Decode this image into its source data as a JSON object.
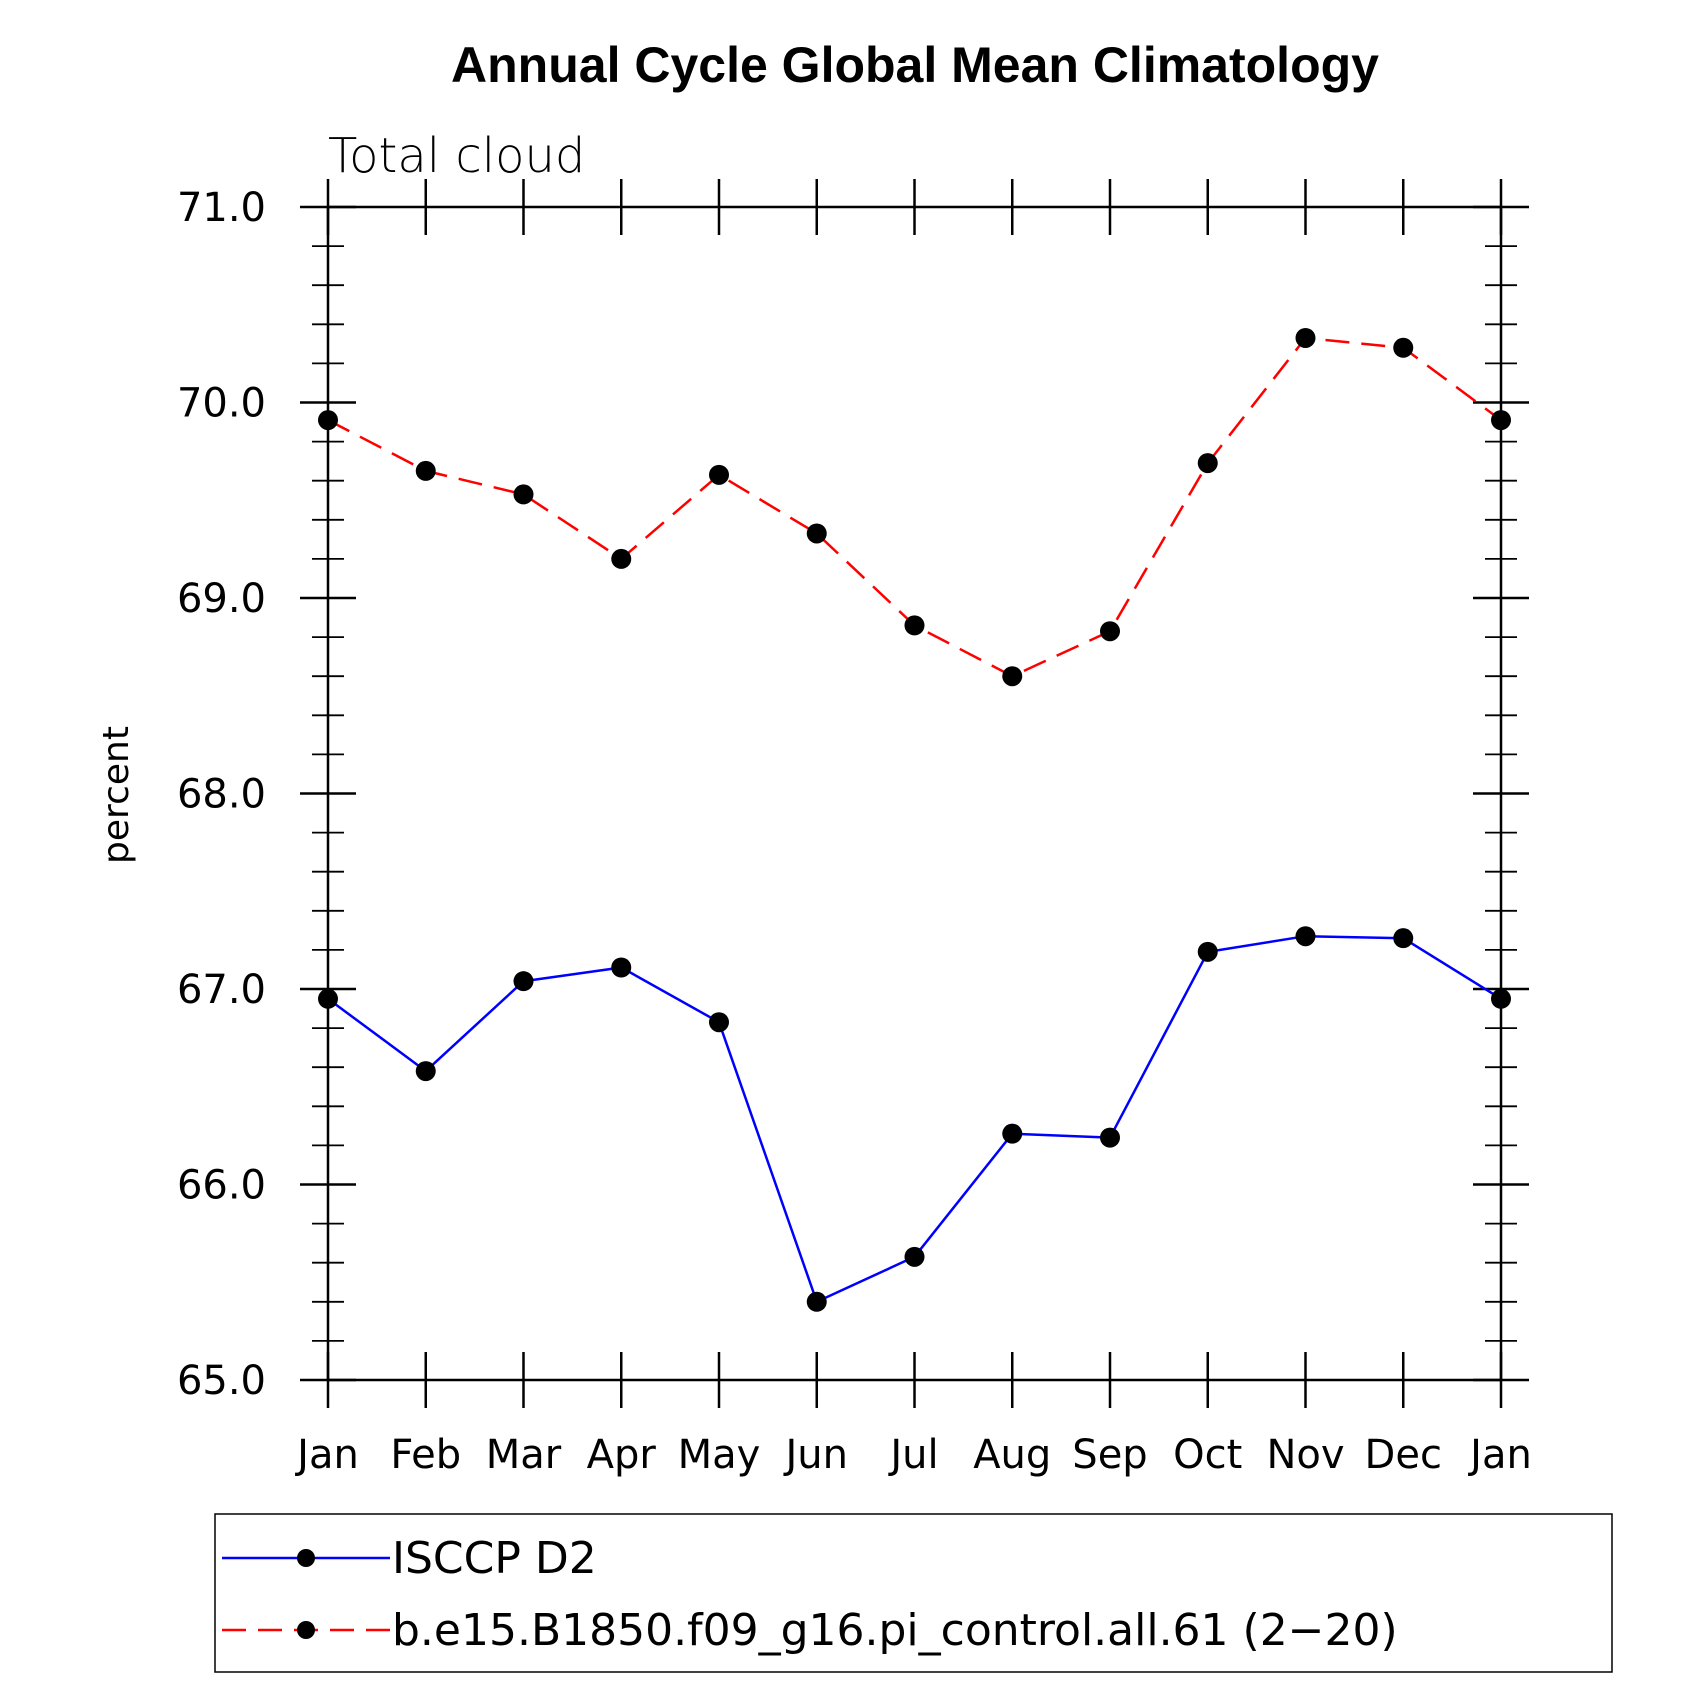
{
  "chart_data": {
    "type": "line",
    "title": "Annual Cycle Global Mean Climatology",
    "subtitle": "Total cloud",
    "xlabel": "",
    "ylabel": "percent",
    "ylim": [
      65.0,
      71.0
    ],
    "yticks": [
      "65.0",
      "66.0",
      "67.0",
      "68.0",
      "69.0",
      "70.0",
      "71.0"
    ],
    "categories": [
      "Jan",
      "Feb",
      "Mar",
      "Apr",
      "May",
      "Jun",
      "Jul",
      "Aug",
      "Sep",
      "Oct",
      "Nov",
      "Dec",
      "Jan"
    ],
    "grid": false,
    "legend_position": "bottom",
    "series": [
      {
        "name": "ISCCP D2",
        "color": "#0000ff",
        "dash": "solid",
        "marker": "filled-circle",
        "values": [
          66.95,
          66.58,
          67.04,
          67.11,
          66.83,
          65.4,
          65.63,
          66.26,
          66.24,
          67.19,
          67.27,
          67.26,
          66.95
        ]
      },
      {
        "name": "b.e15.B1850.f09_g16.pi_control.all.61 (2−20)",
        "color": "#ff0000",
        "dash": "dashed",
        "marker": "filled-circle",
        "values": [
          69.91,
          69.65,
          69.53,
          69.2,
          69.63,
          69.33,
          68.86,
          68.6,
          68.83,
          69.69,
          70.33,
          70.28,
          69.91
        ]
      }
    ]
  }
}
